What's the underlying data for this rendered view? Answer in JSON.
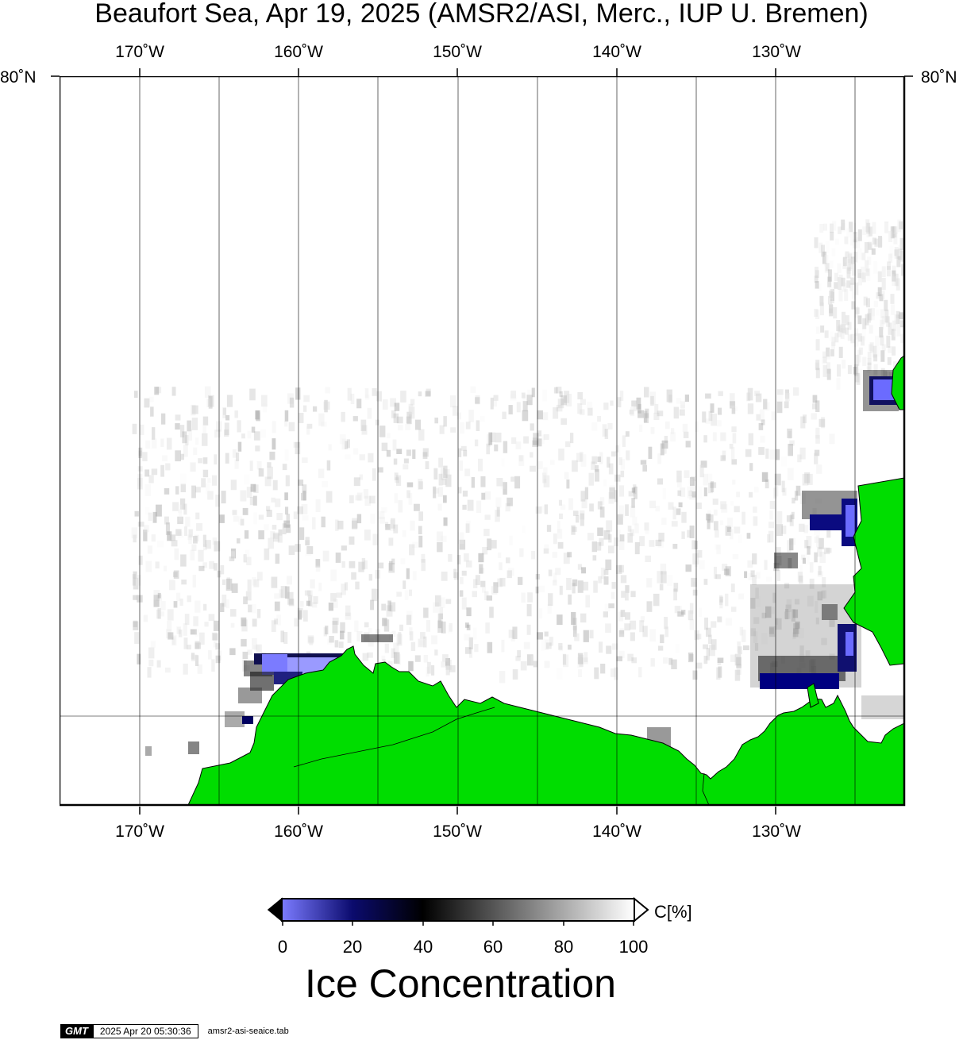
{
  "title": "Beaufort Sea, Apr 19, 2025 (AMSR2/ASI, Merc., IUP U. Bremen)",
  "lon_labels": [
    "170˚W",
    "160˚W",
    "150˚W",
    "140˚W",
    "130˚W"
  ],
  "lat_label": "80˚N",
  "colors": {
    "land": "#00dd00",
    "ocean": "#ffffff",
    "low_concentration": "#7b7bff",
    "mid_low_concentration": "#0b0b6e",
    "mid_concentration": "#000000",
    "high_concentration": "#ffffff"
  },
  "colorbar": {
    "ticks": [
      "0",
      "20",
      "40",
      "60",
      "80",
      "100"
    ],
    "unit": "C[%]",
    "title": "Ice Concentration"
  },
  "footer": {
    "logo": "GMT",
    "timestamp": "2025 Apr 20 05:30:36",
    "filename": "amsr2-asi-seaice.tab"
  }
}
